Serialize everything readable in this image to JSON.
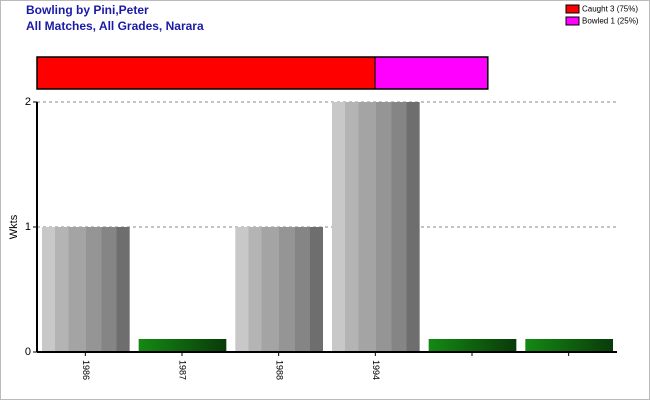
{
  "chart_data": [
    {
      "type": "stacked-bar-h",
      "title": "Bowling by Pini,Peter",
      "subtitle": "All Matches, All Grades, Narara",
      "series": [
        {
          "name": "Caught 3 (75%)",
          "color": "#ff0000",
          "values": [
            3
          ]
        },
        {
          "name": "Bowled 1 (25%)",
          "color": "#ff00ff",
          "values": [
            1
          ]
        }
      ]
    },
    {
      "type": "bar",
      "y_label": "Wkts",
      "categories": [
        "1986",
        "1987",
        "1988",
        "1994",
        null,
        null
      ],
      "values": [
        1,
        0,
        1,
        2,
        0,
        0
      ],
      "ylim": [
        0,
        2
      ],
      "yticks": [
        0,
        1,
        2
      ],
      "grid": true
    }
  ]
}
